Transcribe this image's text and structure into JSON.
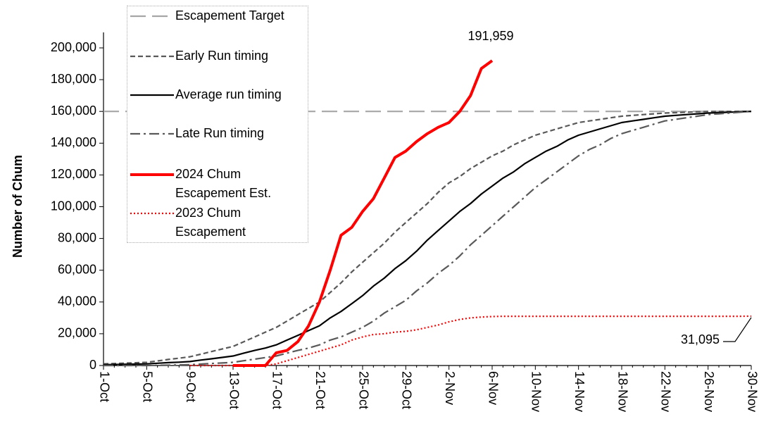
{
  "chart_data": {
    "type": "line",
    "y_label": "Number of Chum",
    "categories": [
      "1-Oct",
      null,
      null,
      null,
      "5-Oct",
      null,
      null,
      null,
      "9-Oct",
      null,
      null,
      null,
      "13-Oct",
      null,
      null,
      null,
      "17-Oct",
      null,
      null,
      null,
      "21-Oct",
      null,
      null,
      null,
      "25-Oct",
      null,
      null,
      null,
      "29-Oct",
      null,
      null,
      null,
      "2-Nov",
      null,
      null,
      null,
      "6-Nov",
      null,
      null,
      null,
      "10-Nov",
      null,
      null,
      null,
      "14-Nov",
      null,
      null,
      null,
      "18-Nov",
      null,
      null,
      null,
      "22-Nov",
      null,
      null,
      null,
      "26-Nov",
      null,
      null,
      null,
      "30-Nov"
    ],
    "ylim": [
      0,
      200000
    ],
    "yticks": [
      0,
      {
        "value": 20000,
        "label": "20,000"
      },
      {
        "value": 40000,
        "label": "40,000"
      },
      {
        "value": 60000,
        "label": "60,000"
      },
      {
        "value": 80000,
        "label": "80,000"
      },
      {
        "value": 100000,
        "label": "100,000"
      },
      {
        "value": 120000,
        "label": "120,000"
      },
      {
        "value": 140000,
        "label": "140,000"
      },
      {
        "value": 160000,
        "label": "160,000"
      },
      {
        "value": 180000,
        "label": "180,000"
      },
      {
        "value": 200000,
        "label": "200,000"
      }
    ],
    "grid": false,
    "series": [
      {
        "name": "Escapement Target",
        "color": "#a6a6a6",
        "line_style": "long-dash",
        "values": [
          160000,
          160000,
          160000,
          160000,
          160000,
          160000,
          160000,
          160000,
          160000,
          160000,
          160000,
          160000,
          160000,
          160000,
          160000,
          160000,
          160000,
          160000,
          160000,
          160000,
          160000,
          160000,
          160000,
          160000,
          160000,
          160000,
          160000,
          160000,
          160000,
          160000,
          160000,
          160000,
          160000,
          160000,
          160000,
          160000,
          160000,
          160000,
          160000,
          160000,
          160000,
          160000,
          160000,
          160000,
          160000,
          160000,
          160000,
          160000,
          160000,
          160000,
          160000,
          160000,
          160000,
          160000,
          160000,
          160000,
          160000,
          160000,
          160000,
          160000,
          160000
        ]
      },
      {
        "name": "Early Run timing",
        "color": "#595959",
        "line_style": "dash",
        "values": [
          1000,
          1250,
          1500,
          1750,
          2000,
          2900,
          3800,
          4600,
          5500,
          7100,
          8800,
          10400,
          12000,
          15000,
          18000,
          21000,
          24000,
          28000,
          32000,
          36000,
          40000,
          46000,
          52000,
          59000,
          65000,
          71000,
          77000,
          84000,
          90000,
          96000,
          102000,
          109000,
          115000,
          119000,
          124000,
          128000,
          132000,
          135000,
          139000,
          142000,
          145000,
          147000,
          149000,
          151000,
          153000,
          154000,
          155000,
          156000,
          157000,
          157500,
          158000,
          158500,
          159000,
          159200,
          159500,
          159800,
          160000,
          160000,
          160000,
          160000,
          160000
        ]
      },
      {
        "name": "Average run timing",
        "color": "#000000",
        "line_style": "solid",
        "values": [
          500,
          600,
          800,
          900,
          1000,
          1400,
          1800,
          2100,
          2500,
          3400,
          4200,
          5100,
          6000,
          7800,
          9500,
          11000,
          13000,
          16000,
          19000,
          22000,
          25000,
          30000,
          34000,
          39000,
          44000,
          50000,
          55000,
          61000,
          66000,
          72000,
          79000,
          85000,
          91000,
          97000,
          102000,
          108000,
          113000,
          118000,
          122000,
          127000,
          131000,
          135000,
          138000,
          142000,
          145000,
          147000,
          149000,
          151000,
          153000,
          154000,
          155000,
          156000,
          157000,
          157500,
          158000,
          158500,
          159000,
          159200,
          159500,
          159800,
          160000
        ]
      },
      {
        "name": "Late Run timing",
        "color": "#595959",
        "line_style": "dash-dot",
        "values": [
          0,
          0,
          0,
          0,
          0,
          100,
          200,
          400,
          500,
          900,
          1300,
          1600,
          2000,
          3000,
          4000,
          5000,
          6000,
          7800,
          9500,
          11000,
          13000,
          16000,
          18000,
          21000,
          24000,
          28000,
          33000,
          37000,
          41000,
          47000,
          52000,
          58000,
          63000,
          69000,
          76000,
          82000,
          88000,
          94000,
          100000,
          106000,
          112000,
          117000,
          122000,
          127000,
          132000,
          136000,
          139000,
          143000,
          146000,
          148000,
          150000,
          152000,
          154000,
          155000,
          156000,
          157000,
          158000,
          158500,
          159000,
          159500,
          160000
        ]
      },
      {
        "name": "2024 Chum Escapement Est.",
        "color": "#ff0000",
        "line_style": "thick",
        "values": [
          null,
          null,
          null,
          null,
          null,
          null,
          null,
          null,
          null,
          null,
          null,
          null,
          0,
          0,
          0,
          0,
          8000,
          9500,
          15000,
          25000,
          40000,
          60000,
          82000,
          87000,
          97000,
          105000,
          118000,
          131000,
          135000,
          141000,
          146000,
          150000,
          153000,
          160000,
          170000,
          187000,
          191959,
          null,
          null,
          null,
          null,
          null,
          null,
          null,
          null,
          null,
          null,
          null,
          null,
          null,
          null,
          null,
          null,
          null,
          null,
          null,
          null,
          null,
          null,
          null,
          null
        ],
        "value_labels": [
          null,
          null,
          null,
          null,
          null,
          null,
          null,
          null,
          null,
          null,
          null,
          null,
          null,
          null,
          null,
          null,
          null,
          null,
          null,
          null,
          null,
          null,
          null,
          null,
          null,
          null,
          null,
          null,
          null,
          null,
          null,
          null,
          null,
          null,
          null,
          null,
          "191,959",
          null,
          null,
          null,
          null,
          null,
          null,
          null,
          null,
          null,
          null,
          null,
          null,
          null,
          null,
          null,
          null,
          null,
          null,
          null,
          null,
          null,
          null,
          null,
          null
        ]
      },
      {
        "name": "2023 Chum Escapement",
        "color": "#ff0000",
        "line_style": "dot",
        "values": [
          null,
          null,
          null,
          null,
          null,
          null,
          null,
          null,
          0,
          0,
          0,
          0,
          0,
          0,
          0,
          0,
          1000,
          3000,
          5000,
          7000,
          9000,
          11000,
          13000,
          16000,
          18000,
          19500,
          20000,
          21000,
          21500,
          22500,
          24000,
          25500,
          27500,
          29000,
          30000,
          30500,
          30800,
          31000,
          31000,
          31000,
          31000,
          31000,
          31000,
          31000,
          31000,
          31000,
          31000,
          31000,
          31000,
          31000,
          31000,
          31000,
          31000,
          31000,
          31000,
          31000,
          31000,
          31000,
          31000,
          31000,
          31095
        ],
        "value_labels": [
          null,
          null,
          null,
          null,
          null,
          null,
          null,
          null,
          null,
          null,
          null,
          null,
          null,
          null,
          null,
          null,
          null,
          null,
          null,
          null,
          null,
          null,
          null,
          null,
          null,
          null,
          null,
          null,
          null,
          null,
          null,
          null,
          null,
          null,
          null,
          null,
          null,
          null,
          null,
          null,
          null,
          null,
          null,
          null,
          null,
          null,
          null,
          null,
          null,
          null,
          null,
          null,
          null,
          null,
          null,
          null,
          null,
          null,
          null,
          null,
          "31,095"
        ]
      }
    ]
  }
}
